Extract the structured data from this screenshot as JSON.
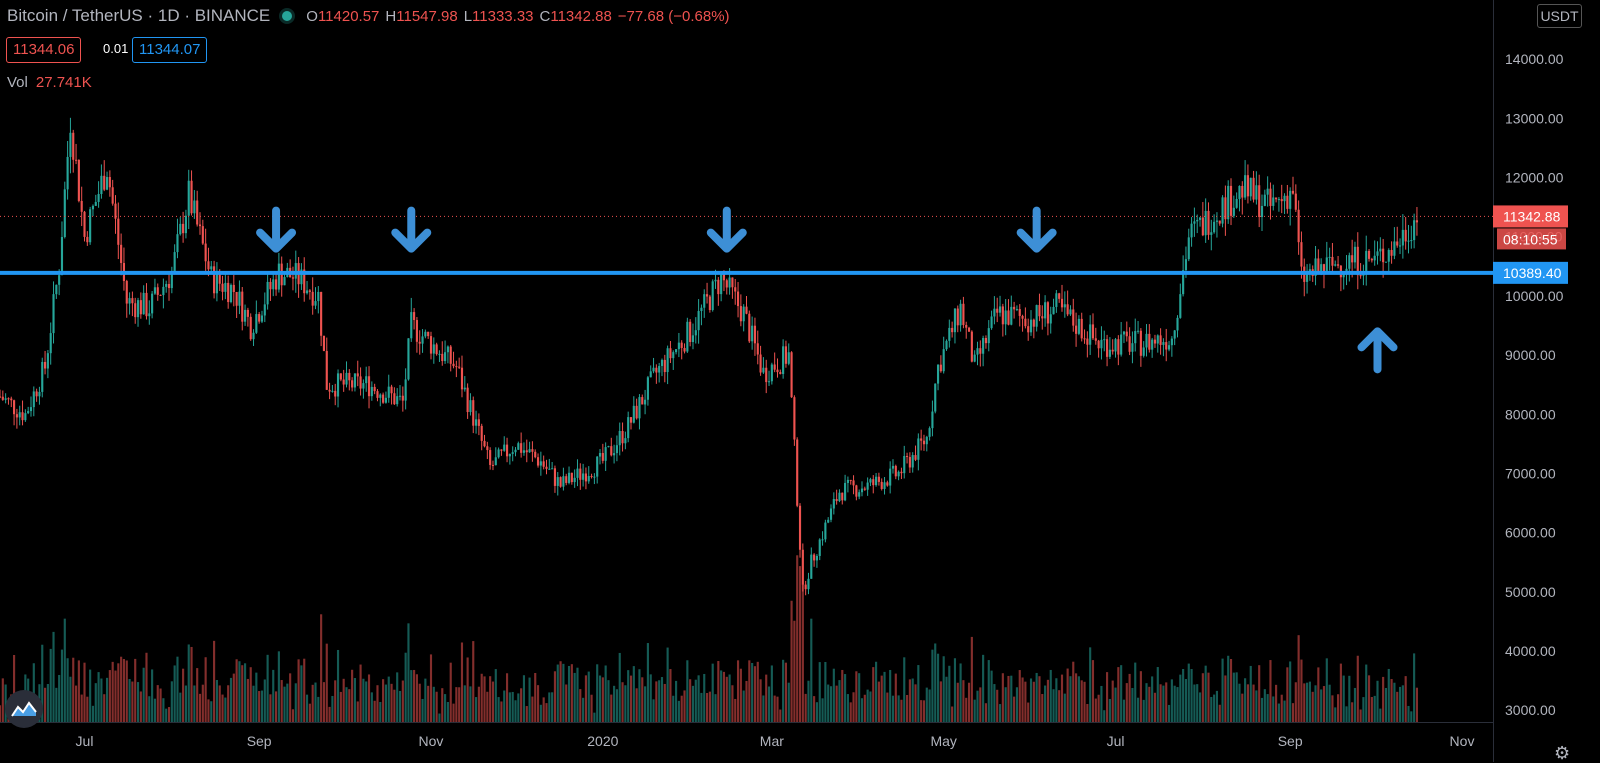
{
  "header": {
    "symbol": "Bitcoin / TetherUS · 1D · BINANCE",
    "open_label": "O",
    "open": "11420.57",
    "high_label": "H",
    "high": "11547.98",
    "low_label": "L",
    "low": "11333.33",
    "close_label": "C",
    "close": "11342.88",
    "change": "−77.68 (−0.68%)"
  },
  "quotes": {
    "sell": "11344.06",
    "spread": "0.01",
    "buy": "11344.07"
  },
  "volume": {
    "label": "Vol",
    "value": "27.741K"
  },
  "currency": "USDT",
  "colors": {
    "up": "#26a69a",
    "down": "#ef5350",
    "support": "#2196f3",
    "arrow": "#3d8fd6"
  },
  "icons": {
    "logo": "tradingview-cloud-icon",
    "settings": "gear-icon"
  },
  "chart_data": {
    "type": "candlestick",
    "ylim": [
      2800,
      15000
    ],
    "yticks": [
      "3000.00",
      "4000.00",
      "5000.00",
      "6000.00",
      "7000.00",
      "8000.00",
      "9000.00",
      "10000.00",
      "11000.00",
      "12000.00",
      "13000.00",
      "14000.00"
    ],
    "x_start": "2019-06-01",
    "x_end": "2020-11-12",
    "xticks": [
      {
        "label": "Jul",
        "date": "2019-07-01"
      },
      {
        "label": "Sep",
        "date": "2019-09-01"
      },
      {
        "label": "Nov",
        "date": "2019-11-01"
      },
      {
        "label": "2020",
        "date": "2020-01-01"
      },
      {
        "label": "Mar",
        "date": "2020-03-01"
      },
      {
        "label": "May",
        "date": "2020-05-01"
      },
      {
        "label": "Jul",
        "date": "2020-07-01"
      },
      {
        "label": "Sep",
        "date": "2020-09-01"
      },
      {
        "label": "Nov",
        "date": "2020-11-01"
      }
    ],
    "price_path": [
      [
        "2019-06-01",
        8300
      ],
      [
        "2019-06-10",
        8000
      ],
      [
        "2019-06-17",
        8800
      ],
      [
        "2019-06-22",
        10500
      ],
      [
        "2019-06-26",
        13000
      ],
      [
        "2019-07-01",
        11000
      ],
      [
        "2019-07-09",
        12200
      ],
      [
        "2019-07-16",
        9900
      ],
      [
        "2019-07-24",
        9800
      ],
      [
        "2019-08-01",
        10400
      ],
      [
        "2019-08-07",
        11700
      ],
      [
        "2019-08-15",
        10300
      ],
      [
        "2019-08-23",
        10100
      ],
      [
        "2019-08-29",
        9500
      ],
      [
        "2019-09-08",
        10400
      ],
      [
        "2019-09-15",
        10300
      ],
      [
        "2019-09-22",
        10000
      ],
      [
        "2019-09-25",
        8500
      ],
      [
        "2019-10-10",
        8500
      ],
      [
        "2019-10-22",
        8200
      ],
      [
        "2019-10-25",
        9500
      ],
      [
        "2019-11-01",
        9200
      ],
      [
        "2019-11-10",
        8800
      ],
      [
        "2019-11-22",
        7100
      ],
      [
        "2019-12-01",
        7500
      ],
      [
        "2019-12-10",
        7200
      ],
      [
        "2019-12-17",
        6800
      ],
      [
        "2020-01-01",
        7200
      ],
      [
        "2020-01-10",
        7800
      ],
      [
        "2020-01-20",
        8700
      ],
      [
        "2020-02-01",
        9400
      ],
      [
        "2020-02-12",
        10300
      ],
      [
        "2020-02-20",
        9700
      ],
      [
        "2020-02-27",
        8700
      ],
      [
        "2020-03-07",
        9000
      ],
      [
        "2020-03-12",
        5000
      ],
      [
        "2020-03-15",
        5500
      ],
      [
        "2020-03-25",
        6700
      ],
      [
        "2020-04-05",
        6800
      ],
      [
        "2020-04-15",
        7000
      ],
      [
        "2020-04-25",
        7600
      ],
      [
        "2020-04-29",
        8800
      ],
      [
        "2020-05-07",
        9800
      ],
      [
        "2020-05-12",
        8800
      ],
      [
        "2020-05-20",
        9700
      ],
      [
        "2020-06-01",
        9600
      ],
      [
        "2020-06-10",
        9800
      ],
      [
        "2020-06-25",
        9200
      ],
      [
        "2020-07-10",
        9200
      ],
      [
        "2020-07-21",
        9300
      ],
      [
        "2020-07-27",
        11000
      ],
      [
        "2020-08-05",
        11400
      ],
      [
        "2020-08-15",
        11800
      ],
      [
        "2020-08-25",
        11500
      ],
      [
        "2020-09-02",
        11800
      ],
      [
        "2020-09-05",
        10300
      ],
      [
        "2020-09-15",
        10500
      ],
      [
        "2020-09-22",
        10600
      ],
      [
        "2020-10-01",
        10600
      ],
      [
        "2020-10-09",
        10900
      ],
      [
        "2020-10-16",
        11343
      ]
    ],
    "last_price": {
      "value": 11342.88,
      "label": "11342.88",
      "countdown": "08:10:55"
    },
    "support_line": {
      "value": 10389.4,
      "label": "10389.40"
    },
    "annotations": [
      {
        "type": "arrow-down",
        "date": "2019-09-07",
        "price": 10900
      },
      {
        "type": "arrow-down",
        "date": "2019-10-25",
        "price": 10900
      },
      {
        "type": "arrow-down",
        "date": "2020-02-14",
        "price": 10900
      },
      {
        "type": "arrow-down",
        "date": "2020-06-03",
        "price": 10900
      },
      {
        "type": "arrow-up",
        "date": "2020-10-02",
        "price": 9300
      }
    ],
    "grid": false
  }
}
